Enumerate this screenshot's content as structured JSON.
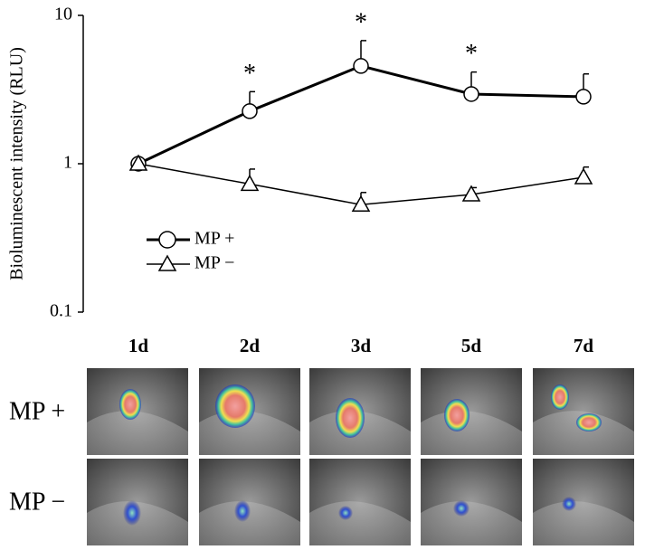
{
  "chart_data": {
    "type": "line",
    "y_label": "Bioluminescent intensity (RLU)",
    "categories": [
      "1d",
      "2d",
      "3d",
      "5d",
      "7d"
    ],
    "yscale": "log",
    "ylim": [
      0.1,
      10
    ],
    "yticks": [
      0.1,
      1,
      10
    ],
    "series": [
      {
        "name": "MP +",
        "color": "#000000",
        "marker": "circle",
        "values": [
          1,
          2.26,
          4.56,
          2.95,
          2.83
        ],
        "errors": [
          0,
          0.8,
          2.2,
          1.2,
          1.2
        ]
      },
      {
        "name": "MP −",
        "color": "#000000",
        "marker": "triangle",
        "values": [
          1,
          0.73,
          0.53,
          0.62,
          0.81
        ],
        "errors": [
          0,
          0.19,
          0.11,
          0.07,
          0.14
        ]
      }
    ],
    "significance": [
      null,
      "*",
      "*",
      "*",
      null
    ],
    "legend": "center-left",
    "panel_rows": [
      "MP +",
      "MP −"
    ]
  }
}
